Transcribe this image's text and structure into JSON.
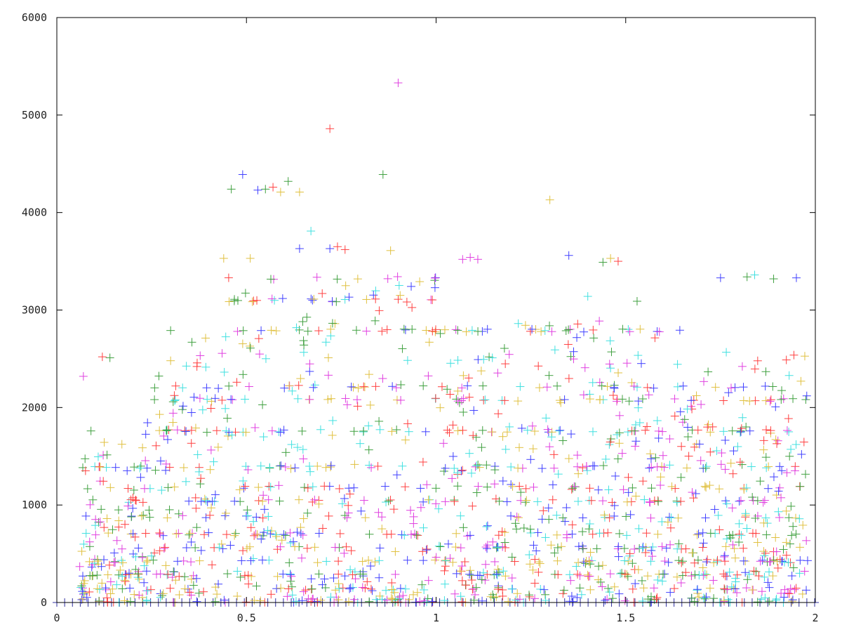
{
  "chart_data": {
    "type": "scatter",
    "marker": "plus",
    "xlim": [
      0,
      2
    ],
    "ylim": [
      0,
      6000
    ],
    "x_ticks": [
      "0",
      "0.5",
      "1",
      "1.5",
      "2"
    ],
    "y_ticks": [
      "0",
      "1000",
      "2000",
      "3000",
      "4000",
      "5000",
      "6000"
    ],
    "grid": false,
    "legend": "none",
    "series_colors": [
      "#ff4040",
      "#40a040",
      "#4040ff",
      "#e040e0",
      "#40e0e0",
      "#e0c040"
    ],
    "outliers": [
      {
        "x": 0.07,
        "y": 2320,
        "color": "#e040e0"
      },
      {
        "x": 0.12,
        "y": 2520,
        "color": "#ff4040"
      },
      {
        "x": 0.14,
        "y": 2510,
        "color": "#40a040"
      },
      {
        "x": 0.09,
        "y": 1760,
        "color": "#40a040"
      },
      {
        "x": 0.3,
        "y": 2790,
        "color": "#40a040"
      },
      {
        "x": 0.3,
        "y": 2480,
        "color": "#e0c040"
      },
      {
        "x": 0.46,
        "y": 4240,
        "color": "#40a040"
      },
      {
        "x": 0.49,
        "y": 4390,
        "color": "#4040ff"
      },
      {
        "x": 0.53,
        "y": 4230,
        "color": "#4040ff"
      },
      {
        "x": 0.55,
        "y": 4240,
        "color": "#40a040"
      },
      {
        "x": 0.57,
        "y": 4260,
        "color": "#ff4040"
      },
      {
        "x": 0.59,
        "y": 4210,
        "color": "#e0c040"
      },
      {
        "x": 0.61,
        "y": 4320,
        "color": "#40a040"
      },
      {
        "x": 0.64,
        "y": 4210,
        "color": "#e0c040"
      },
      {
        "x": 0.72,
        "y": 4860,
        "color": "#ff4040"
      },
      {
        "x": 0.86,
        "y": 4390,
        "color": "#40a040"
      },
      {
        "x": 0.9,
        "y": 5330,
        "color": "#e040e0"
      },
      {
        "x": 0.67,
        "y": 3810,
        "color": "#40e0e0"
      },
      {
        "x": 0.64,
        "y": 3630,
        "color": "#4040ff"
      },
      {
        "x": 0.44,
        "y": 3530,
        "color": "#e0c040"
      },
      {
        "x": 0.51,
        "y": 3530,
        "color": "#e0c040"
      },
      {
        "x": 0.72,
        "y": 3630,
        "color": "#4040ff"
      },
      {
        "x": 0.74,
        "y": 3650,
        "color": "#ff4040"
      },
      {
        "x": 0.76,
        "y": 3620,
        "color": "#ff4040"
      },
      {
        "x": 0.88,
        "y": 3610,
        "color": "#e0c040"
      },
      {
        "x": 1.3,
        "y": 4130,
        "color": "#e0c040"
      },
      {
        "x": 1.35,
        "y": 3560,
        "color": "#4040ff"
      },
      {
        "x": 1.44,
        "y": 3490,
        "color": "#40a040"
      },
      {
        "x": 1.46,
        "y": 3530,
        "color": "#e0c040"
      },
      {
        "x": 1.48,
        "y": 3500,
        "color": "#ff4040"
      },
      {
        "x": 1.07,
        "y": 3520,
        "color": "#e040e0"
      },
      {
        "x": 1.09,
        "y": 3540,
        "color": "#e040e0"
      },
      {
        "x": 1.11,
        "y": 3520,
        "color": "#e040e0"
      },
      {
        "x": 1.75,
        "y": 3330,
        "color": "#4040ff"
      },
      {
        "x": 1.82,
        "y": 3340,
        "color": "#40a040"
      },
      {
        "x": 1.84,
        "y": 3360,
        "color": "#40e0e0"
      },
      {
        "x": 1.89,
        "y": 3320,
        "color": "#40a040"
      },
      {
        "x": 1.95,
        "y": 3330,
        "color": "#4040ff"
      },
      {
        "x": 1.53,
        "y": 3090,
        "color": "#40a040"
      },
      {
        "x": 1.4,
        "y": 3140,
        "color": "#40e0e0"
      }
    ],
    "bulk_points_note": ""
  }
}
